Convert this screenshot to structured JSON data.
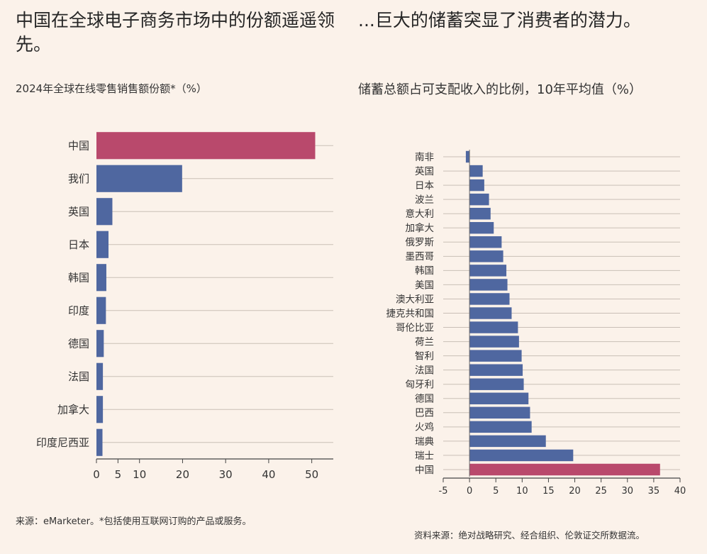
{
  "left": {
    "headline": "中国在全球电子商务市场中的份额遥遥领先。",
    "subtitle": "2024年全球在线零售销售额份额*（%）",
    "source": "来源：eMarketer。*包括使用互联网订购的产品或服务。"
  },
  "right": {
    "headline": "...巨大的储蓄突显了消费者的潜力。",
    "subtitle": "储蓄总额占可支配收入的比例，10年平均值（%）",
    "source": "资料来源：绝对战略研究、经合组织、伦敦证交所数据流。"
  },
  "colors": {
    "background": "#fbf2ea",
    "highlight": "#b9496c",
    "bar": "#4f67a0",
    "grid": "#c9bfb6",
    "axis": "#444444"
  },
  "chart_data": [
    {
      "type": "bar",
      "orientation": "horizontal",
      "title": "2024年全球在线零售销售额份额*（%）",
      "categories": [
        "中国",
        "我们",
        "英国",
        "日本",
        "韩国",
        "印度",
        "德国",
        "法国",
        "加拿大",
        "印度尼西亚"
      ],
      "values": [
        50.8,
        19.9,
        3.7,
        2.8,
        2.3,
        2.2,
        1.7,
        1.5,
        1.5,
        1.4
      ],
      "highlight": [
        "中国"
      ],
      "xlim": [
        0,
        55
      ],
      "xticks": [
        0,
        5,
        10,
        20,
        30,
        40,
        50
      ],
      "grid": "horizontal-lines"
    },
    {
      "type": "bar",
      "orientation": "horizontal",
      "title": "储蓄总额占可支配收入的比例，10年平均值（%）",
      "categories": [
        "南非",
        "英国",
        "日本",
        "波兰",
        "意大利",
        "加拿大",
        "俄罗斯",
        "墨西哥",
        "韩国",
        "美国",
        "澳大利亚",
        "捷克共和国",
        "哥伦比亚",
        "荷兰",
        "智利",
        "法国",
        "匈牙利",
        "德国",
        "巴西",
        "火鸡",
        "瑞典",
        "瑞士",
        "中国"
      ],
      "values": [
        -0.7,
        2.5,
        2.8,
        3.7,
        4.0,
        4.6,
        6.1,
        6.4,
        7.0,
        7.2,
        7.6,
        8.0,
        9.2,
        9.4,
        9.9,
        10.1,
        10.3,
        11.2,
        11.5,
        11.8,
        14.5,
        19.7,
        36.2
      ],
      "highlight": [
        "中国"
      ],
      "xlim": [
        -5,
        40
      ],
      "xticks": [
        -5,
        0,
        5,
        10,
        15,
        20,
        25,
        30,
        35,
        40
      ],
      "grid": "horizontal-lines"
    }
  ]
}
